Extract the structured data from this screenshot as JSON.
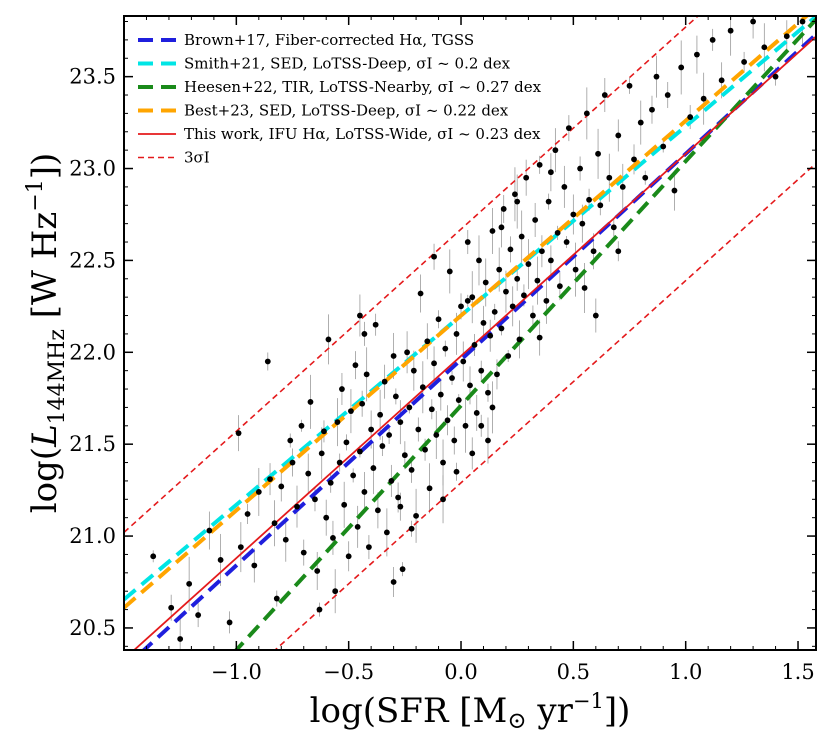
{
  "chart_data": {
    "type": "scatter",
    "title": "",
    "xlabel": "log(SFR [M⊙ yr⁻¹])",
    "ylabel": "log(L144MHz [W Hz⁻¹])",
    "xlim": [
      -1.5,
      1.58
    ],
    "ylim": [
      20.38,
      23.83
    ],
    "grid": false,
    "legend_position": "top-left",
    "x_ticks": [
      -1.0,
      -0.5,
      0.0,
      0.5,
      1.0,
      1.5
    ],
    "x_tick_labels": [
      "−1.0",
      "−0.5",
      "0.0",
      "0.5",
      "1.0",
      "1.5"
    ],
    "y_ticks": [
      20.5,
      21.0,
      21.5,
      22.0,
      22.5,
      23.0,
      23.5
    ],
    "y_tick_labels": [
      "20.5",
      "21.0",
      "21.5",
      "22.0",
      "22.5",
      "23.0",
      "23.5"
    ],
    "series": [
      {
        "name": "Brown+17, Fiber-corrected Hα, TGSS",
        "kind": "line",
        "style": "dashed",
        "color": "#1f1fdd",
        "slope": 1.12,
        "intercept": 21.96
      },
      {
        "name": "Smith+21, SED, LoTSS-Deep, σI ~ 0.2 dex",
        "kind": "line",
        "style": "dashed",
        "color": "#00e5e5",
        "slope": 1.03,
        "intercept": 22.2
      },
      {
        "name": "Heesen+22, TIR, LoTSS-Nearby, σI ~ 0.27 dex",
        "kind": "line",
        "style": "dashed",
        "color": "#1a8a1a",
        "slope": 1.33,
        "intercept": 21.71
      },
      {
        "name": "Best+23, SED, LoTSS-Deep, σI ~ 0.22 dex",
        "kind": "line",
        "style": "dashed",
        "color": "#ffa500",
        "slope": 1.06,
        "intercept": 22.2
      },
      {
        "name": "This work, IFU Hα, LoTSS-Wide, σI ~ 0.23 dex",
        "kind": "line",
        "style": "solid",
        "color": "#e41a1c",
        "slope": 1.1,
        "intercept": 21.98
      },
      {
        "name": "3σI",
        "kind": "band",
        "style": "dashed",
        "color": "#e41a1c",
        "slope": 1.1,
        "intercept": 21.98,
        "offset": 0.69
      },
      {
        "name": "",
        "kind": "scatter",
        "color": "#000000",
        "points": [
          [
            -1.37,
            20.89
          ],
          [
            -1.29,
            20.61
          ],
          [
            -1.25,
            20.44
          ],
          [
            -1.21,
            20.74
          ],
          [
            -1.17,
            20.57
          ],
          [
            -1.12,
            21.03
          ],
          [
            -1.07,
            20.87
          ],
          [
            -1.03,
            20.53
          ],
          [
            -0.99,
            21.56
          ],
          [
            -0.98,
            20.94
          ],
          [
            -0.95,
            21.12
          ],
          [
            -0.92,
            20.84
          ],
          [
            -0.9,
            21.24
          ],
          [
            -0.86,
            21.95
          ],
          [
            -0.85,
            21.31
          ],
          [
            -0.83,
            21.07
          ],
          [
            -0.82,
            20.66
          ],
          [
            -0.8,
            21.27
          ],
          [
            -0.78,
            20.98
          ],
          [
            -0.76,
            21.52
          ],
          [
            -0.75,
            21.4
          ],
          [
            -0.73,
            21.16
          ],
          [
            -0.71,
            21.6
          ],
          [
            -0.7,
            20.91
          ],
          [
            -0.68,
            21.34
          ],
          [
            -0.67,
            21.73
          ],
          [
            -0.65,
            21.2
          ],
          [
            -0.64,
            20.81
          ],
          [
            -0.62,
            21.45
          ],
          [
            -0.61,
            21.57
          ],
          [
            -0.6,
            21.1
          ],
          [
            -0.59,
            22.07
          ],
          [
            -0.58,
            21.29
          ],
          [
            -0.57,
            20.99
          ],
          [
            -0.55,
            21.62
          ],
          [
            -0.54,
            21.4
          ],
          [
            -0.53,
            21.8
          ],
          [
            -0.52,
            21.17
          ],
          [
            -0.51,
            21.51
          ],
          [
            -0.5,
            20.89
          ],
          [
            -0.49,
            21.68
          ],
          [
            -0.48,
            21.33
          ],
          [
            -0.47,
            21.93
          ],
          [
            -0.46,
            21.05
          ],
          [
            -0.45,
            21.46
          ],
          [
            -0.44,
            21.72
          ],
          [
            -0.43,
            21.24
          ],
          [
            -0.42,
            21.88
          ],
          [
            -0.41,
            20.94
          ],
          [
            -0.4,
            21.58
          ],
          [
            -0.39,
            21.37
          ],
          [
            -0.38,
            22.15
          ],
          [
            -0.37,
            21.14
          ],
          [
            -0.36,
            21.66
          ],
          [
            -0.35,
            21.49
          ],
          [
            -0.34,
            21.84
          ],
          [
            -0.33,
            21.02
          ],
          [
            -0.32,
            21.55
          ],
          [
            -0.31,
            21.3
          ],
          [
            -0.3,
            21.98
          ],
          [
            -0.29,
            21.76
          ],
          [
            -0.28,
            21.21
          ],
          [
            -0.27,
            21.62
          ],
          [
            -0.26,
            20.82
          ],
          [
            -0.25,
            21.44
          ],
          [
            -0.24,
            22.0
          ],
          [
            -0.23,
            21.7
          ],
          [
            -0.22,
            21.36
          ],
          [
            -0.21,
            21.9
          ],
          [
            -0.2,
            21.11
          ],
          [
            -0.19,
            21.58
          ],
          [
            -0.18,
            22.32
          ],
          [
            -0.17,
            21.81
          ],
          [
            -0.16,
            21.47
          ],
          [
            -0.15,
            22.06
          ],
          [
            -0.14,
            21.26
          ],
          [
            -0.13,
            21.69
          ],
          [
            -0.12,
            21.94
          ],
          [
            -0.11,
            21.55
          ],
          [
            -0.1,
            22.18
          ],
          [
            -0.09,
            21.77
          ],
          [
            -0.08,
            21.4
          ],
          [
            -0.07,
            22.02
          ],
          [
            -0.06,
            21.63
          ],
          [
            -0.05,
            22.44
          ],
          [
            -0.04,
            21.86
          ],
          [
            -0.03,
            21.52
          ],
          [
            -0.02,
            22.1
          ],
          [
            -0.01,
            21.74
          ],
          [
            0.0,
            22.25
          ],
          [
            0.01,
            21.95
          ],
          [
            0.02,
            21.6
          ],
          [
            0.03,
            22.6
          ],
          [
            0.04,
            21.82
          ],
          [
            0.05,
            22.3
          ],
          [
            0.06,
            22.04
          ],
          [
            0.07,
            21.67
          ],
          [
            0.08,
            22.5
          ],
          [
            0.09,
            21.9
          ],
          [
            0.1,
            22.16
          ],
          [
            0.11,
            22.38
          ],
          [
            0.12,
            21.78
          ],
          [
            0.13,
            22.09
          ],
          [
            0.14,
            22.66
          ],
          [
            0.15,
            22.22
          ],
          [
            0.16,
            21.88
          ],
          [
            0.17,
            22.45
          ],
          [
            0.18,
            22.13
          ],
          [
            0.19,
            22.78
          ],
          [
            0.2,
            22.33
          ],
          [
            0.21,
            21.98
          ],
          [
            0.22,
            22.56
          ],
          [
            0.23,
            22.25
          ],
          [
            0.24,
            22.86
          ],
          [
            0.25,
            22.4
          ],
          [
            0.26,
            22.07
          ],
          [
            0.27,
            22.63
          ],
          [
            0.28,
            22.31
          ],
          [
            0.29,
            22.95
          ],
          [
            0.3,
            22.48
          ],
          [
            0.32,
            22.2
          ],
          [
            0.33,
            22.72
          ],
          [
            0.34,
            22.39
          ],
          [
            0.35,
            23.02
          ],
          [
            0.36,
            22.55
          ],
          [
            0.38,
            22.28
          ],
          [
            0.39,
            22.82
          ],
          [
            0.4,
            22.5
          ],
          [
            0.42,
            23.1
          ],
          [
            0.43,
            22.65
          ],
          [
            0.44,
            22.36
          ],
          [
            0.46,
            22.9
          ],
          [
            0.47,
            22.6
          ],
          [
            0.48,
            23.22
          ],
          [
            0.5,
            22.75
          ],
          [
            0.51,
            22.45
          ],
          [
            0.53,
            23.0
          ],
          [
            0.54,
            22.7
          ],
          [
            0.56,
            23.3
          ],
          [
            0.57,
            22.83
          ],
          [
            0.59,
            22.55
          ],
          [
            0.61,
            23.08
          ],
          [
            0.62,
            22.8
          ],
          [
            0.64,
            23.4
          ],
          [
            0.66,
            22.95
          ],
          [
            0.68,
            22.68
          ],
          [
            0.7,
            23.18
          ],
          [
            0.72,
            22.9
          ],
          [
            0.75,
            23.45
          ],
          [
            0.77,
            23.05
          ],
          [
            0.8,
            23.25
          ],
          [
            0.82,
            22.95
          ],
          [
            0.85,
            23.32
          ],
          [
            0.87,
            23.5
          ],
          [
            0.9,
            23.12
          ],
          [
            0.92,
            23.4
          ],
          [
            0.95,
            22.88
          ],
          [
            0.98,
            23.55
          ],
          [
            1.02,
            23.28
          ],
          [
            1.05,
            23.62
          ],
          [
            1.08,
            23.38
          ],
          [
            1.12,
            23.7
          ],
          [
            1.16,
            23.48
          ],
          [
            1.2,
            23.75
          ],
          [
            1.26,
            23.58
          ],
          [
            1.3,
            23.8
          ],
          [
            1.35,
            23.66
          ],
          [
            1.4,
            23.5
          ],
          [
            1.45,
            23.72
          ],
          [
            1.52,
            23.8
          ],
          [
            -0.22,
            21.04
          ],
          [
            -0.3,
            20.75
          ],
          [
            -0.56,
            20.7
          ],
          [
            -0.63,
            20.6
          ],
          [
            -0.27,
            21.16
          ],
          [
            -0.45,
            22.2
          ],
          [
            0.03,
            22.28
          ],
          [
            -0.12,
            22.52
          ],
          [
            0.18,
            22.68
          ],
          [
            0.25,
            22.82
          ],
          [
            -0.43,
            22.1
          ],
          [
            0.4,
            22.98
          ],
          [
            0.14,
            21.7
          ],
          [
            0.09,
            21.6
          ],
          [
            0.35,
            22.08
          ],
          [
            0.55,
            22.35
          ],
          [
            0.7,
            22.55
          ],
          [
            0.6,
            22.2
          ],
          [
            -0.08,
            21.2
          ],
          [
            -0.02,
            21.35
          ],
          [
            0.05,
            21.45
          ],
          [
            0.12,
            21.52
          ]
        ]
      }
    ]
  }
}
